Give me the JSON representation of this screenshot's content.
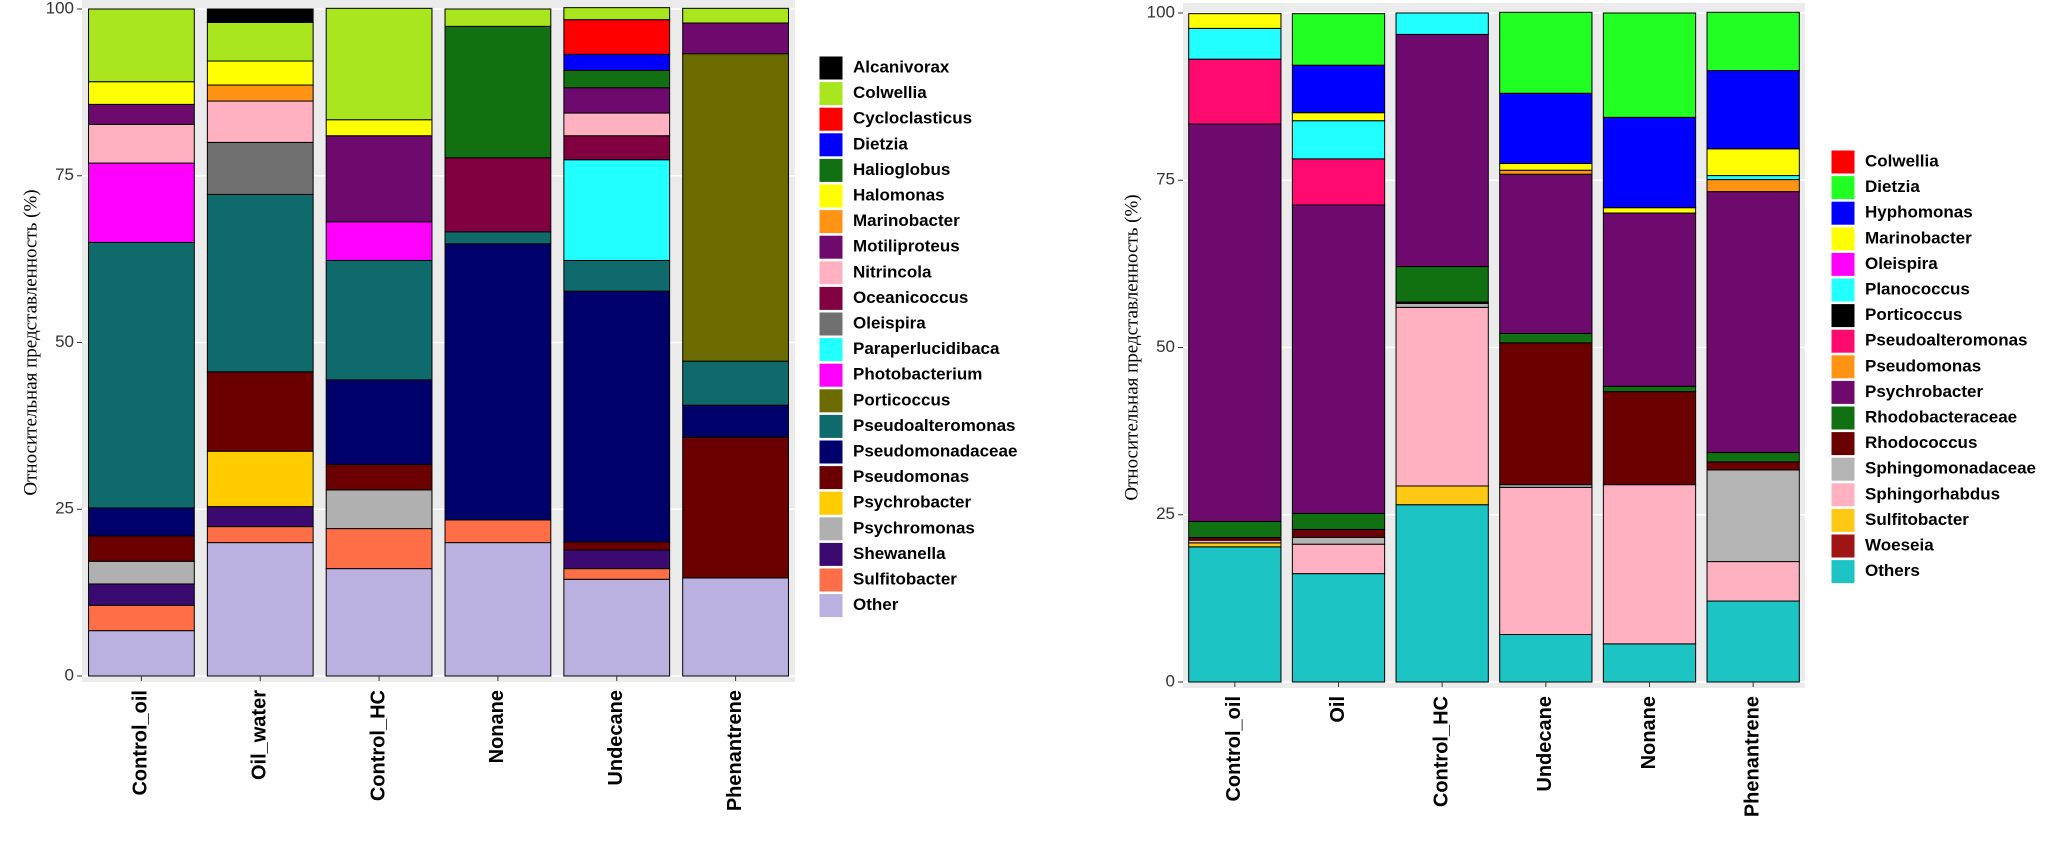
{
  "chart_data": [
    {
      "type": "stacked_bar",
      "y_label": "Относительная представленность (%)",
      "categories": [
        "Control_oil",
        "Oil_water",
        "Control_HC",
        "Nonane",
        "Undecane",
        "Phenantrene"
      ],
      "ylim": [
        0,
        100
      ],
      "yticks": [
        0,
        25,
        50,
        75,
        100
      ],
      "grid": true,
      "legend": "right",
      "series": [
        {
          "name": "Alcanivorax",
          "color": "#000000",
          "values": [
            null,
            2.0,
            null,
            null,
            null,
            null
          ]
        },
        {
          "name": "Colwellia",
          "color": "#aae61e",
          "values": [
            10.9,
            5.8,
            16.7,
            2.6,
            1.8,
            2.2
          ]
        },
        {
          "name": "Cycloclasticus",
          "color": "#ff0000",
          "values": [
            null,
            null,
            null,
            null,
            5.2,
            null
          ]
        },
        {
          "name": "Dietzia",
          "color": "#0000ff",
          "values": [
            null,
            null,
            null,
            null,
            2.4,
            null
          ]
        },
        {
          "name": "Halioglobus",
          "color": "#117011",
          "values": [
            null,
            null,
            null,
            19.7,
            2.6,
            null
          ]
        },
        {
          "name": "Halomonas",
          "color": "#ffff00",
          "values": [
            3.4,
            3.6,
            2.4,
            null,
            null,
            null
          ]
        },
        {
          "name": "Marinobacter",
          "color": "#ff9414",
          "values": [
            null,
            2.4,
            null,
            null,
            null,
            null
          ]
        },
        {
          "name": "Motiliproteus",
          "color": "#6e0a6e",
          "values": [
            3.0,
            null,
            12.9,
            null,
            3.8,
            4.6
          ]
        },
        {
          "name": "Nitrincola",
          "color": "#ffb1c1",
          "values": [
            5.8,
            6.2,
            null,
            null,
            3.4,
            null
          ]
        },
        {
          "name": "Oceanicoccus",
          "color": "#800040",
          "values": [
            null,
            null,
            null,
            11.1,
            3.6,
            null
          ]
        },
        {
          "name": "Oleispira",
          "color": "#707070",
          "values": [
            null,
            7.8,
            null,
            null,
            null,
            null
          ]
        },
        {
          "name": "Paraperlucidibaca",
          "color": "#22ffff",
          "values": [
            null,
            null,
            null,
            null,
            15.1,
            null
          ]
        },
        {
          "name": "Photobacterium",
          "color": "#ff00ff",
          "values": [
            11.9,
            null,
            5.8,
            null,
            null,
            null
          ]
        },
        {
          "name": "Porticoccus",
          "color": "#6b6b00",
          "values": [
            null,
            null,
            null,
            null,
            null,
            46.1
          ]
        },
        {
          "name": "Pseudoalteromonas",
          "color": "#0f6b6b",
          "values": [
            39.8,
            26.6,
            17.9,
            1.8,
            4.6,
            6.6
          ]
        },
        {
          "name": "Pseudomonadaceae",
          "color": "#00006b",
          "values": [
            4.2,
            null,
            12.7,
            41.4,
            37.6,
            4.8
          ]
        },
        {
          "name": "Pseudomonas",
          "color": "#6b0000",
          "values": [
            3.8,
            11.9,
            3.8,
            null,
            1.2,
            21.1
          ]
        },
        {
          "name": "Psychrobacter",
          "color": "#ffcc00",
          "values": [
            null,
            8.3,
            null,
            null,
            null,
            null
          ]
        },
        {
          "name": "Psychromonas",
          "color": "#b0b0b0",
          "values": [
            3.4,
            null,
            5.8,
            null,
            null,
            null
          ]
        },
        {
          "name": "Shewanella",
          "color": "#3a0a70",
          "values": [
            3.2,
            3.0,
            null,
            null,
            2.8,
            null
          ]
        },
        {
          "name": "Sulfitobacter",
          "color": "#ff6f47",
          "values": [
            3.8,
            2.4,
            6.0,
            3.4,
            1.6,
            null
          ]
        },
        {
          "name": "Other",
          "color": "#bbb1e0",
          "values": [
            6.8,
            20.0,
            16.1,
            20.0,
            14.5,
            14.7
          ]
        }
      ]
    },
    {
      "type": "stacked_bar",
      "y_label": "Относительная представленность (%)",
      "categories": [
        "Control_oil",
        "Oil",
        "Control_HC",
        "Undecane",
        "Nonane",
        "Phenantrene"
      ],
      "ylim": [
        0,
        100
      ],
      "yticks": [
        0,
        25,
        50,
        75,
        100
      ],
      "grid": true,
      "legend": "right",
      "series": [
        {
          "name": "Colwellia",
          "color": "#ff0000",
          "values": [
            null,
            null,
            null,
            null,
            null,
            null
          ]
        },
        {
          "name": "Dietzia",
          "color": "#22ff22",
          "values": [
            null,
            7.7,
            null,
            12.1,
            15.6,
            8.7
          ]
        },
        {
          "name": "Hyphomonas",
          "color": "#0000ff",
          "values": [
            null,
            7.1,
            null,
            10.5,
            13.5,
            11.7
          ]
        },
        {
          "name": "Marinobacter",
          "color": "#ffff00",
          "values": [
            2.2,
            1.2,
            null,
            1.0,
            0.8,
            4.0
          ]
        },
        {
          "name": "Oleispira",
          "color": "#ff00ff",
          "values": [
            null,
            null,
            null,
            null,
            null,
            null
          ]
        },
        {
          "name": "Planococcus",
          "color": "#22ffff",
          "values": [
            4.6,
            5.7,
            3.2,
            null,
            null,
            0.6
          ]
        },
        {
          "name": "Porticoccus",
          "color": "#000000",
          "values": [
            null,
            null,
            null,
            null,
            null,
            null
          ]
        },
        {
          "name": "Pseudoalteromonas",
          "color": "#ff0a6e",
          "values": [
            9.7,
            6.9,
            null,
            null,
            null,
            null
          ]
        },
        {
          "name": "Pseudomonas",
          "color": "#ff9414",
          "values": [
            null,
            null,
            null,
            0.6,
            null,
            1.8
          ]
        },
        {
          "name": "Psychrobacter",
          "color": "#6e0a6e",
          "values": [
            59.4,
            46.1,
            34.7,
            23.8,
            25.9,
            39.0
          ]
        },
        {
          "name": "Rhodobacteraceae",
          "color": "#117011",
          "values": [
            2.4,
            2.4,
            5.3,
            1.4,
            0.8,
            1.4
          ]
        },
        {
          "name": "Rhodococcus",
          "color": "#6b0000",
          "values": [
            0.4,
            1.2,
            0.2,
            21.2,
            13.9,
            1.2
          ]
        },
        {
          "name": "Sphingomonadaceae",
          "color": "#b4b4b4",
          "values": [
            null,
            1.0,
            0.6,
            0.4,
            null,
            13.7
          ]
        },
        {
          "name": "Sphingorhabdus",
          "color": "#ffb1c1",
          "values": [
            0.4,
            4.4,
            26.7,
            22.0,
            23.8,
            5.9
          ]
        },
        {
          "name": "Sulfitobacter",
          "color": "#ffc814",
          "values": [
            0.6,
            null,
            2.8,
            null,
            null,
            null
          ]
        },
        {
          "name": "Woeseia",
          "color": "#a01414",
          "values": [
            null,
            null,
            null,
            null,
            null,
            null
          ]
        },
        {
          "name": "Others",
          "color": "#1cc4c4",
          "values": [
            20.2,
            16.2,
            26.5,
            7.1,
            5.7,
            12.1
          ]
        }
      ]
    }
  ]
}
